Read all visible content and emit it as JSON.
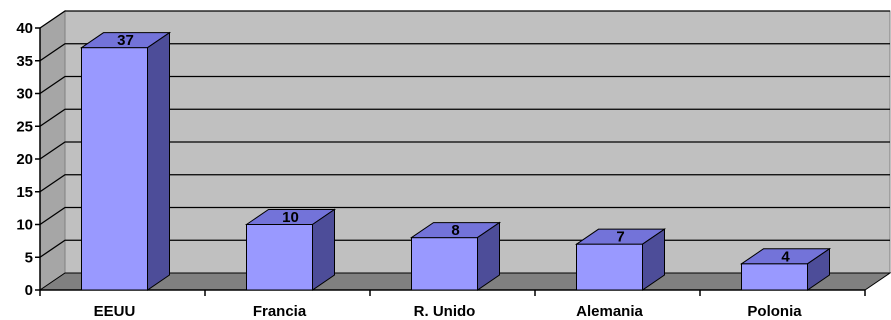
{
  "chart_data": {
    "type": "bar",
    "categories": [
      "EEUU",
      "Francia",
      "R. Unido",
      "Alemania",
      "Polonia"
    ],
    "values": [
      37,
      10,
      8,
      7,
      4
    ],
    "data_labels": [
      "37",
      "10",
      "8",
      "7",
      "4"
    ],
    "y_ticks": [
      "0",
      "5",
      "10",
      "15",
      "20",
      "25",
      "30",
      "35",
      "40"
    ],
    "ylim": [
      0,
      40
    ],
    "grid": true,
    "legend": "none",
    "three_d": true,
    "colors": {
      "bar_front": "#9999ff",
      "bar_top": "#7373d9",
      "bar_side": "#4d4d99",
      "plot_back": "#c0c0c0",
      "plot_floor": "#808080",
      "plot_wall": "#a6a6a6",
      "gridline": "#000000"
    }
  }
}
